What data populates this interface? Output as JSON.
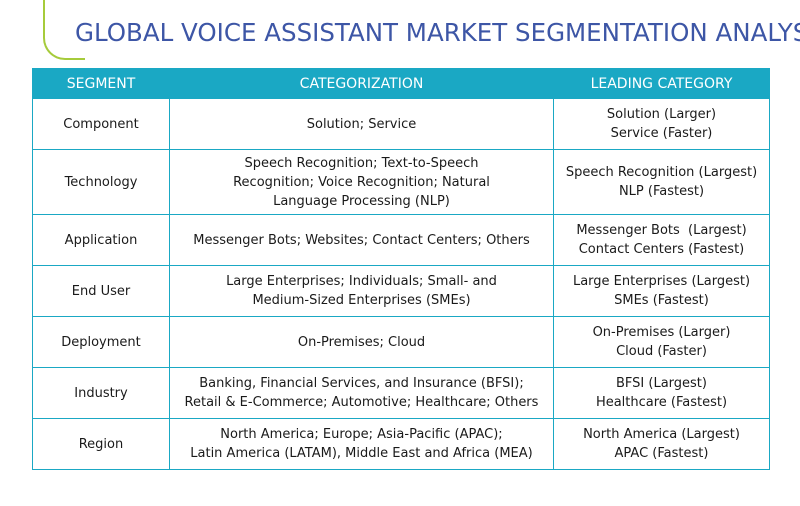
{
  "title": "GLOBAL VOICE ASSISTANT MARKET SEGMENTATION ANALYSIS",
  "headers": {
    "segment": "SEGMENT",
    "categorization": "CATEGORIZATION",
    "leading": "LEADING CATEGORY"
  },
  "colors": {
    "title": "#3d56a6",
    "header_bg": "#1aa8c4",
    "accent_line": "#a6cb3b"
  },
  "rows": [
    {
      "segment": "Component",
      "categorization": [
        "Solution; Service"
      ],
      "leading": [
        "Solution (Larger)",
        "Service (Faster)"
      ]
    },
    {
      "segment": "Technology",
      "categorization": [
        "Speech Recognition; Text-to-Speech",
        "Recognition; Voice Recognition; Natural",
        "Language Processing (NLP)"
      ],
      "leading": [
        "Speech Recognition (Largest)",
        "NLP (Fastest)"
      ]
    },
    {
      "segment": "Application",
      "categorization": [
        "Messenger Bots; Websites; Contact Centers; Others"
      ],
      "leading": [
        "Messenger Bots  (Largest)",
        "Contact Centers (Fastest)"
      ]
    },
    {
      "segment": "End User",
      "categorization": [
        "Large Enterprises; Individuals; Small- and",
        "Medium-Sized Enterprises (SMEs)"
      ],
      "leading": [
        "Large Enterprises (Largest)",
        "SMEs (Fastest)"
      ]
    },
    {
      "segment": "Deployment",
      "categorization": [
        "On-Premises; Cloud"
      ],
      "leading": [
        "On-Premises (Larger)",
        "Cloud (Faster)"
      ]
    },
    {
      "segment": "Industry",
      "categorization": [
        "Banking, Financial Services, and Insurance (BFSI);",
        "Retail & E-Commerce; Automotive; Healthcare; Others"
      ],
      "leading": [
        "BFSI (Largest)",
        "Healthcare (Fastest)"
      ]
    },
    {
      "segment": "Region",
      "categorization": [
        "North America; Europe; Asia-Pacific (APAC);",
        "Latin America (LATAM), Middle East and Africa (MEA)"
      ],
      "leading": [
        "North America (Largest)",
        "APAC (Fastest)"
      ]
    }
  ]
}
